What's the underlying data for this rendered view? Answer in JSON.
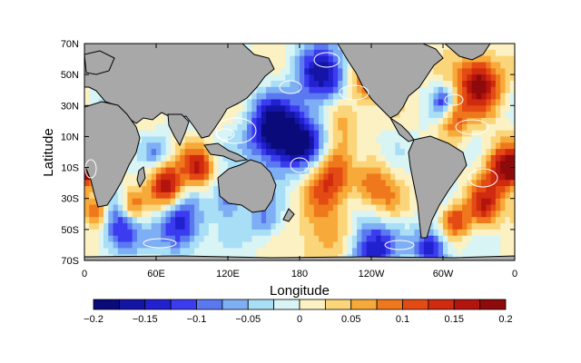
{
  "chart_data": {
    "type": "heatmap",
    "title": "",
    "xlabel": "Longitude",
    "ylabel": "Latitude",
    "x_ticks": [
      "0",
      "60E",
      "120E",
      "180",
      "120W",
      "60W",
      "0"
    ],
    "y_ticks": [
      "70N",
      "50N",
      "30N",
      "10N",
      "10S",
      "30S",
      "50S",
      "70S"
    ],
    "x_range_deg_east": [
      0,
      360
    ],
    "y_range_deg_north": [
      -70,
      70
    ],
    "land_color": "#a8a8a8",
    "contour_color": "#ffffff",
    "colorbar": {
      "ticks": [
        "-0.2",
        "-0.15",
        "-0.1",
        "-0.05",
        "0",
        "0.05",
        "0.1",
        "0.15",
        "0.2"
      ],
      "levels": [
        -0.2,
        -0.175,
        -0.15,
        -0.125,
        -0.1,
        -0.075,
        -0.05,
        -0.025,
        0,
        0.025,
        0.05,
        0.075,
        0.1,
        0.125,
        0.15,
        0.175,
        0.2
      ],
      "colors": [
        "#0a0a7a",
        "#1414a6",
        "#2121cf",
        "#3b3bf0",
        "#5a78f0",
        "#7eaef4",
        "#a9def7",
        "#d8f4f4",
        "#fbf1c2",
        "#fbd57a",
        "#f7aa3a",
        "#f0781c",
        "#e34a14",
        "#d02a0f",
        "#b3140d",
        "#8f0a0a"
      ]
    },
    "field_blobs": [
      {
        "lon": 160,
        "lat": 12,
        "r": 22,
        "v": -0.22
      },
      {
        "lon": 185,
        "lat": 5,
        "r": 18,
        "v": -0.14
      },
      {
        "lon": 200,
        "lat": 48,
        "r": 22,
        "v": -0.16
      },
      {
        "lon": 235,
        "lat": 45,
        "r": 14,
        "v": 0.1
      },
      {
        "lon": 215,
        "lat": 25,
        "r": 16,
        "v": 0.09
      },
      {
        "lon": 205,
        "lat": -15,
        "r": 20,
        "v": 0.13
      },
      {
        "lon": 240,
        "lat": -20,
        "r": 16,
        "v": 0.1
      },
      {
        "lon": 255,
        "lat": -35,
        "r": 14,
        "v": 0.04
      },
      {
        "lon": 230,
        "lat": -5,
        "r": 12,
        "v": -0.05
      },
      {
        "lon": 330,
        "lat": 45,
        "r": 18,
        "v": 0.2
      },
      {
        "lon": 310,
        "lat": 20,
        "r": 12,
        "v": 0.1
      },
      {
        "lon": 300,
        "lat": 33,
        "r": 9,
        "v": -0.1
      },
      {
        "lon": 350,
        "lat": -10,
        "r": 16,
        "v": 0.17
      },
      {
        "lon": 335,
        "lat": -35,
        "r": 14,
        "v": 0.13
      },
      {
        "lon": 310,
        "lat": -45,
        "r": 12,
        "v": 0.12
      },
      {
        "lon": 70,
        "lat": -22,
        "r": 14,
        "v": 0.18
      },
      {
        "lon": 95,
        "lat": -10,
        "r": 12,
        "v": 0.15
      },
      {
        "lon": 60,
        "lat": 0,
        "r": 10,
        "v": -0.06
      },
      {
        "lon": 120,
        "lat": -30,
        "r": 12,
        "v": -0.12
      },
      {
        "lon": 80,
        "lat": -48,
        "r": 18,
        "v": -0.15
      },
      {
        "lon": 30,
        "lat": -50,
        "r": 16,
        "v": -0.14
      },
      {
        "lon": 150,
        "lat": -45,
        "r": 14,
        "v": -0.08
      },
      {
        "lon": 200,
        "lat": -55,
        "r": 22,
        "v": 0.08
      },
      {
        "lon": 240,
        "lat": -62,
        "r": 20,
        "v": -0.15
      },
      {
        "lon": 290,
        "lat": -62,
        "r": 14,
        "v": -0.16
      },
      {
        "lon": 5,
        "lat": -10,
        "r": 10,
        "v": 0.17
      },
      {
        "lon": 10,
        "lat": -38,
        "r": 10,
        "v": 0.12
      },
      {
        "lon": 40,
        "lat": -35,
        "r": 10,
        "v": 0.1
      }
    ]
  }
}
